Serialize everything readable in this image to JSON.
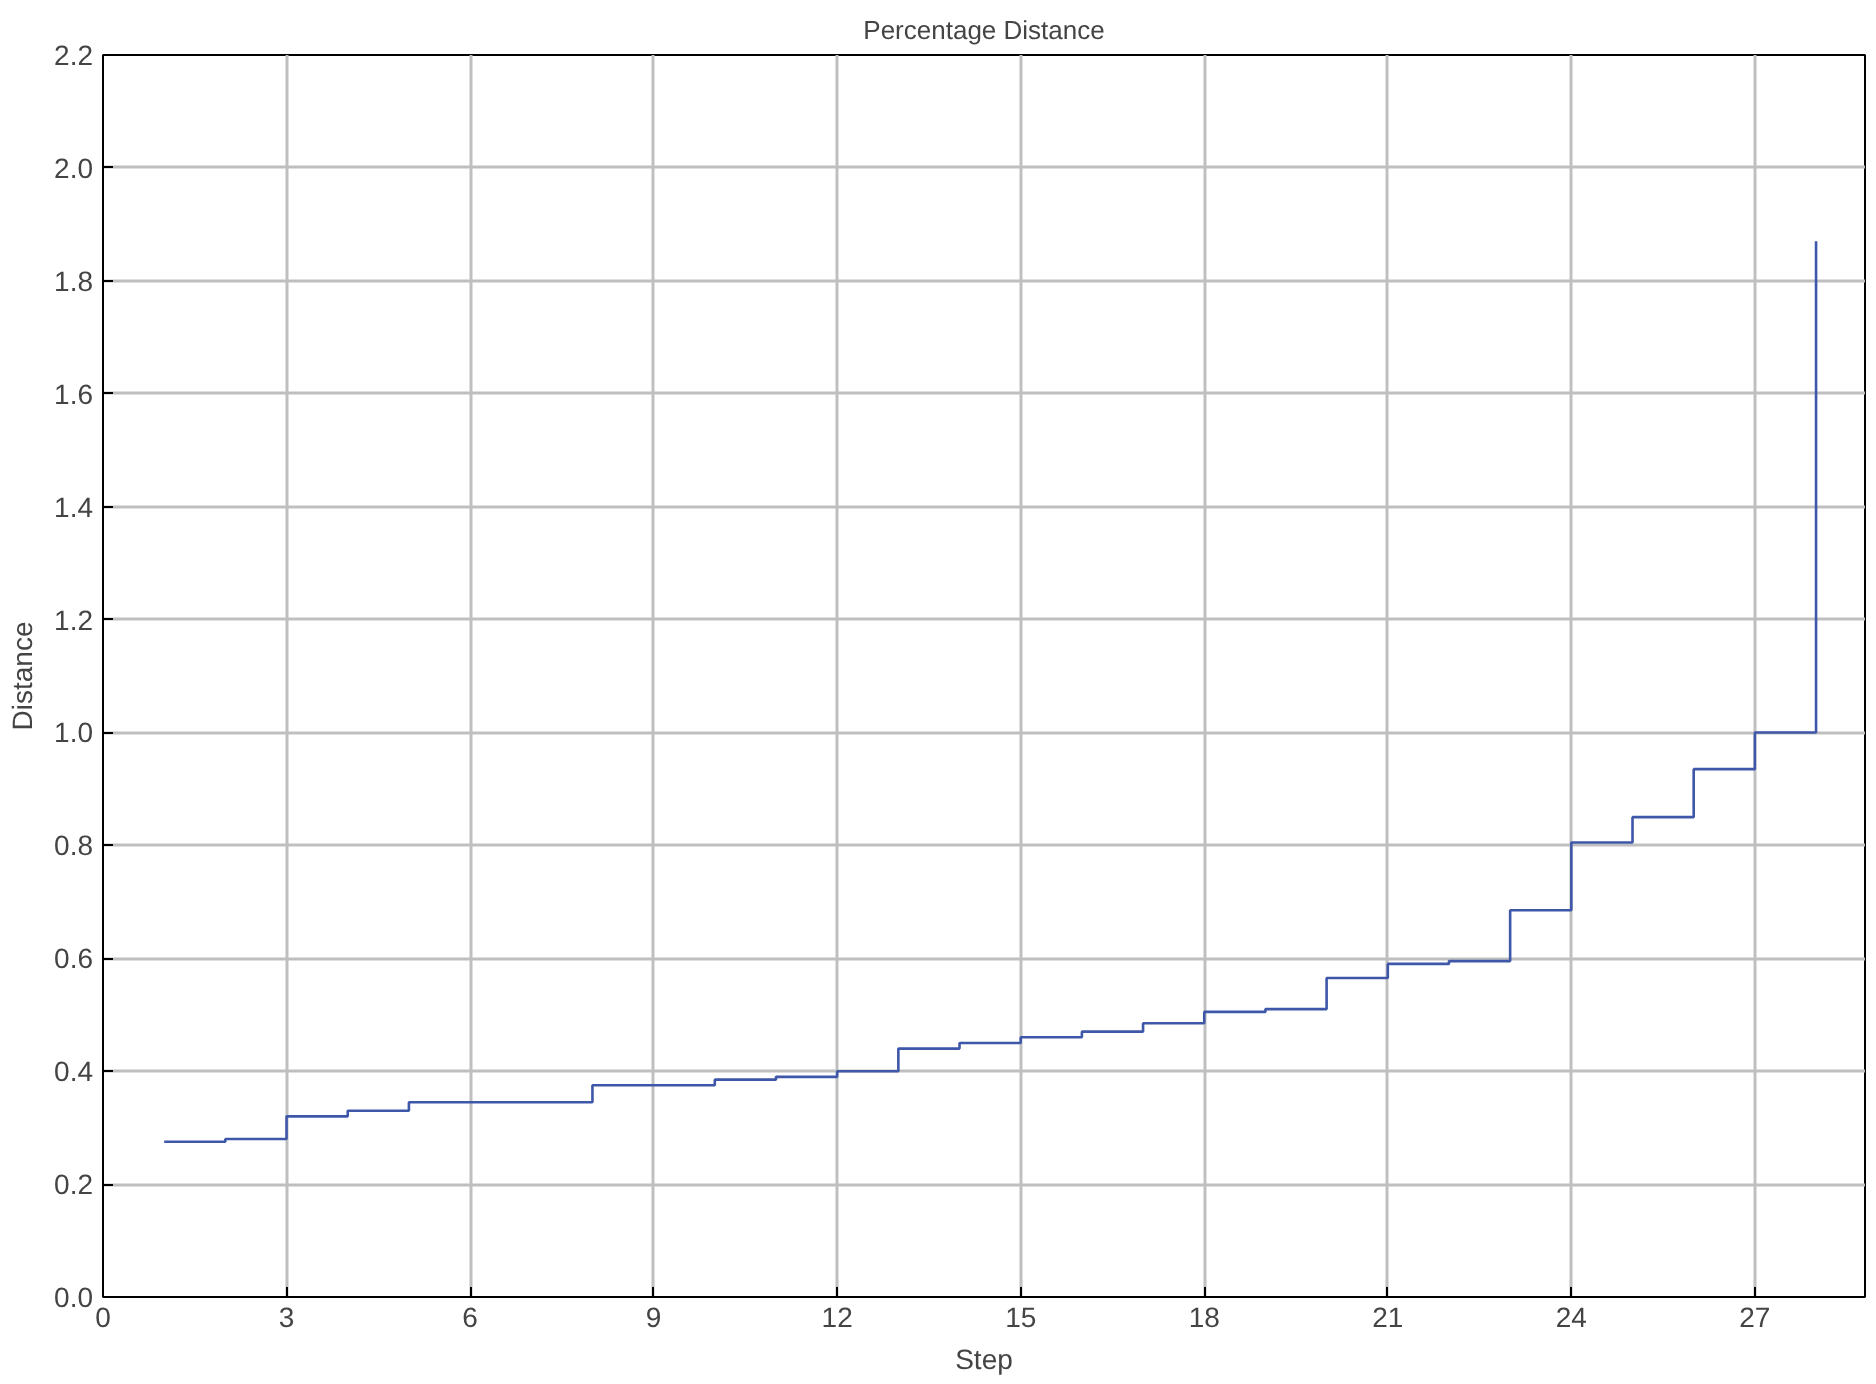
{
  "chart_data": {
    "type": "step",
    "title": "Percentage Distance",
    "xlabel": "Step",
    "ylabel": "Distance",
    "x": [
      1,
      2,
      3,
      4,
      5,
      6,
      7,
      8,
      9,
      10,
      11,
      12,
      13,
      14,
      15,
      16,
      17,
      18,
      19,
      20,
      21,
      22,
      23,
      24,
      25,
      26,
      27,
      28
    ],
    "series": [
      {
        "color": "#3f57a8",
        "values": [
          0.275,
          0.28,
          0.32,
          0.33,
          0.345,
          0.345,
          0.345,
          0.375,
          0.375,
          0.385,
          0.39,
          0.4,
          0.44,
          0.45,
          0.46,
          0.47,
          0.485,
          0.505,
          0.51,
          0.565,
          0.59,
          0.595,
          0.685,
          0.805,
          0.85,
          0.935,
          1.0,
          1.87
        ]
      }
    ],
    "xlim": [
      0,
      28.8
    ],
    "ylim": [
      0,
      2.2
    ],
    "xticks": [
      0,
      3,
      6,
      9,
      12,
      15,
      18,
      21,
      24,
      27
    ],
    "yticks": [
      {
        "value": 0,
        "label": "0.0"
      },
      {
        "value": 0.2,
        "label": "0.2"
      },
      {
        "value": 0.4,
        "label": "0.4"
      },
      {
        "value": 0.6,
        "label": "0.6"
      },
      {
        "value": 0.8,
        "label": "0.8"
      },
      {
        "value": 1.0,
        "label": "1.0"
      },
      {
        "value": 1.2,
        "label": "1.2"
      },
      {
        "value": 1.4,
        "label": "1.4"
      },
      {
        "value": 1.6,
        "label": "1.6"
      },
      {
        "value": 1.8,
        "label": "1.8"
      },
      {
        "value": 2.0,
        "label": "2.0"
      },
      {
        "value": 2.2,
        "label": "2.2"
      }
    ],
    "grid": true
  }
}
